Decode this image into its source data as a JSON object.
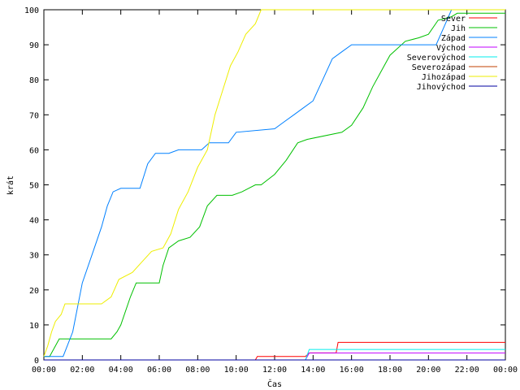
{
  "chart_data": {
    "type": "line",
    "xlabel": "Čas",
    "ylabel": "krát",
    "xlim": [
      0,
      24
    ],
    "ylim": [
      0,
      100
    ],
    "xtick_labels": [
      "00:00",
      "02:00",
      "04:00",
      "06:00",
      "08:00",
      "10:00",
      "12:00",
      "14:00",
      "16:00",
      "18:00",
      "20:00",
      "22:00",
      "00:00"
    ],
    "ytick_labels": [
      "0",
      "10",
      "20",
      "30",
      "40",
      "50",
      "60",
      "70",
      "80",
      "90",
      "100"
    ],
    "grid": false,
    "legend_position": "top-right",
    "series": [
      {
        "name": "Sever",
        "color": "#ff0000",
        "x": [
          0,
          11.0,
          11.1,
          12.5,
          13.6,
          13.8,
          15.2,
          15.3,
          24
        ],
        "y": [
          0,
          0,
          1,
          1,
          1,
          2,
          2,
          5,
          5
        ]
      },
      {
        "name": "Jih",
        "color": "#00c000",
        "x": [
          0,
          0.3,
          0.6,
          0.8,
          3.5,
          3.8,
          4.0,
          4.5,
          4.8,
          6.0,
          6.2,
          6.5,
          7.0,
          7.6,
          8.1,
          8.5,
          9.0,
          9.8,
          10.3,
          11.0,
          11.3,
          12.0,
          12.6,
          13.2,
          13.7,
          15.5,
          16.0,
          16.6,
          17.1,
          17.6,
          18.0,
          18.8,
          19.5,
          20.0,
          20.5,
          21.2,
          21.5,
          24
        ],
        "y": [
          1,
          1,
          4,
          6,
          6,
          8,
          10,
          18,
          22,
          22,
          27,
          32,
          34,
          35,
          38,
          44,
          47,
          47,
          48,
          50,
          50,
          53,
          57,
          62,
          63,
          65,
          67,
          72,
          78,
          83,
          87,
          91,
          92,
          93,
          97,
          98,
          99,
          99
        ]
      },
      {
        "name": "Západ",
        "color": "#0080ff",
        "x": [
          0,
          1.0,
          1.5,
          2.0,
          2.5,
          3.0,
          3.3,
          3.6,
          4.0,
          5.0,
          5.4,
          5.8,
          6.2,
          6.5,
          7.0,
          8.2,
          8.6,
          9.6,
          10.0,
          12.0,
          12.5,
          13.0,
          13.5,
          14.0,
          14.5,
          15.0,
          15.5,
          16.0,
          17.0,
          20.4,
          20.8,
          21.2,
          24
        ],
        "y": [
          1,
          1,
          8,
          22,
          30,
          38,
          44,
          48,
          49,
          49,
          56,
          59,
          59,
          59,
          60,
          60,
          62,
          62,
          65,
          66,
          68,
          70,
          72,
          74,
          80,
          86,
          88,
          90,
          90,
          90,
          95,
          100,
          100
        ]
      },
      {
        "name": "Východ",
        "color": "#c000ff",
        "x": [
          0,
          13.6,
          13.8,
          24
        ],
        "y": [
          0,
          0,
          2,
          2
        ]
      },
      {
        "name": "Severovýchod",
        "color": "#00eeee",
        "x": [
          0,
          13.6,
          13.8,
          24
        ],
        "y": [
          0,
          0,
          3,
          3
        ]
      },
      {
        "name": "Severozápad",
        "color": "#c04000",
        "x": [
          0,
          24
        ],
        "y": [
          0,
          0
        ]
      },
      {
        "name": "Jihozápad",
        "color": "#eeee00",
        "x": [
          0,
          0.2,
          0.4,
          0.6,
          0.9,
          1.1,
          3.0,
          3.5,
          3.9,
          4.6,
          5.1,
          5.6,
          6.2,
          6.6,
          7.0,
          7.5,
          8.0,
          8.5,
          8.9,
          9.3,
          9.7,
          10.1,
          10.5,
          11.0,
          11.3,
          24
        ],
        "y": [
          1,
          4,
          8,
          11,
          13,
          16,
          16,
          18,
          23,
          25,
          28,
          31,
          32,
          36,
          43,
          48,
          55,
          60,
          70,
          77,
          84,
          88,
          93,
          96,
          100,
          100
        ]
      },
      {
        "name": "Jihovýchod",
        "color": "#0000a0",
        "x": [
          0,
          24
        ],
        "y": [
          0,
          0
        ]
      }
    ]
  }
}
